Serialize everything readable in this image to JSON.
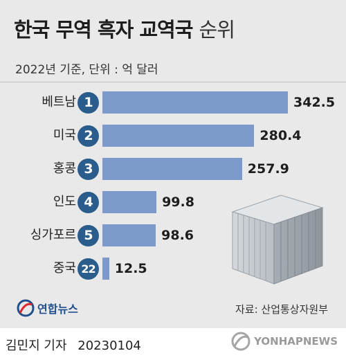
{
  "header": {
    "title_bold": "한국 무역 흑자 교역국",
    "title_light": "순위",
    "subtitle": "2022년 기준, 단위 : 억 달러"
  },
  "chart_data": {
    "type": "bar",
    "orientation": "horizontal",
    "categories": [
      "베트남",
      "미국",
      "홍콩",
      "인도",
      "싱가포르",
      "중국"
    ],
    "ranks": [
      "1",
      "2",
      "3",
      "4",
      "5",
      "22"
    ],
    "values": [
      342.5,
      280.4,
      257.9,
      99.8,
      98.6,
      12.5
    ],
    "value_labels": [
      "342.5",
      "280.4",
      "257.9",
      "99.8",
      "98.6",
      "12.5"
    ],
    "xlim": [
      0,
      342.5
    ],
    "bar_color": "#7b99c9",
    "rank_badge_color": "#2b5d8c",
    "grid": false
  },
  "footer": {
    "logo_icon": "yonhap-logo-icon",
    "logo_text": "연합뉴스",
    "source": "자료: 산업통상자원부",
    "byline": "김민지 기자",
    "date": "20230104",
    "watermark": "YONHAPNEWS"
  },
  "colors": {
    "panel_bg": "#e9e9e9",
    "accent": "#2b5d8c"
  }
}
